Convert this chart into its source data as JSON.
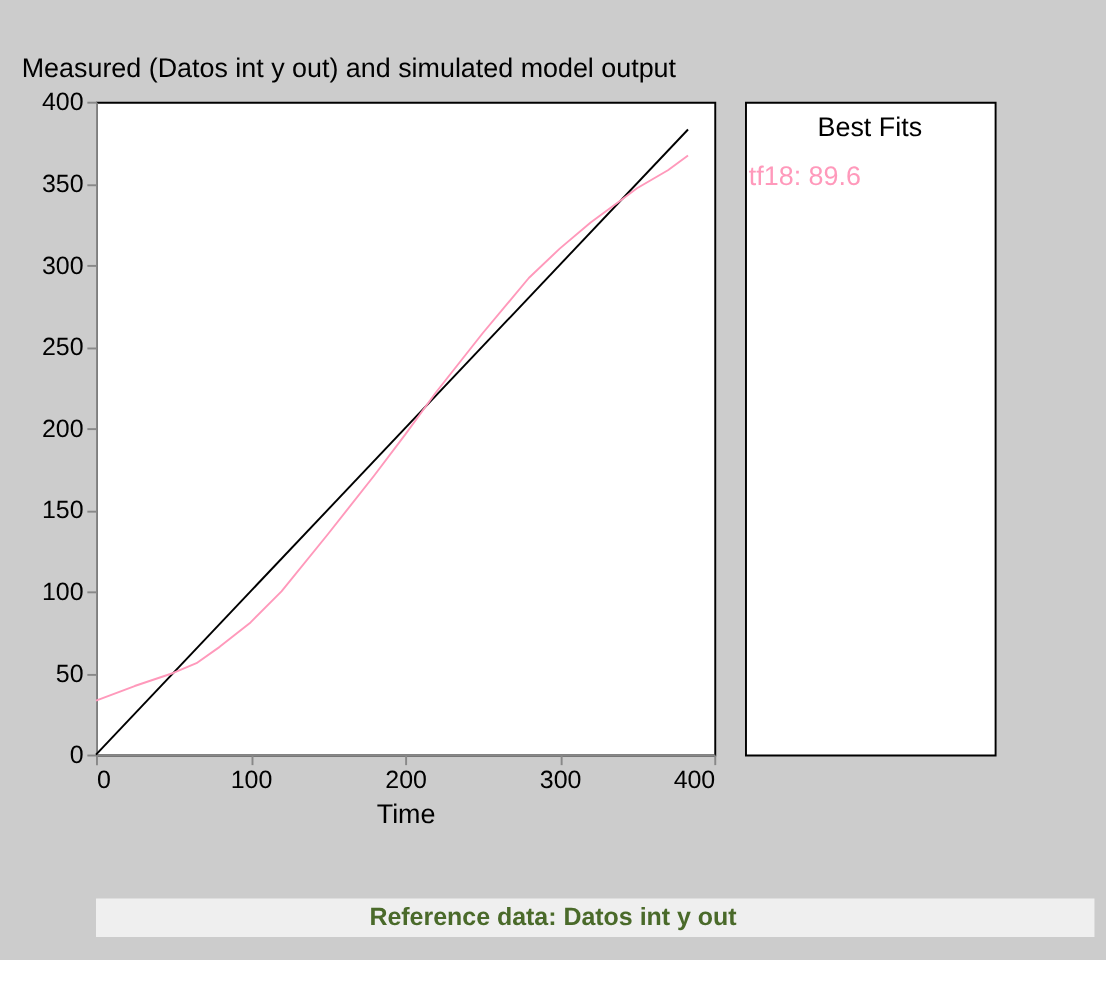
{
  "chart_data": {
    "type": "line",
    "title": "Measured (Datos int y out) and simulated model output",
    "xlabel": "Time",
    "legend_title": "Best Fits",
    "legend": "right",
    "grid": false,
    "xlim": [
      0,
      400
    ],
    "xticks": [
      0,
      100,
      200,
      300,
      400
    ],
    "ylim": [
      0,
      400
    ],
    "yticks": [
      0,
      50,
      100,
      150,
      200,
      250,
      300,
      350,
      400
    ],
    "series": [
      {
        "color": "#000000",
        "x": [
          0,
          383
        ],
        "values": [
          0,
          383
        ]
      },
      {
        "name": "tf18: 89.6",
        "color": "#ff99bb",
        "x": [
          0,
          25,
          50,
          65,
          80,
          100,
          120,
          150,
          180,
          200,
          220,
          250,
          280,
          300,
          320,
          340,
          350,
          370,
          383
        ],
        "values": [
          33,
          42,
          50,
          56,
          66,
          81,
          100,
          135,
          171,
          196,
          222,
          258,
          292,
          310,
          326,
          340,
          347,
          358,
          367
        ]
      }
    ],
    "annotations": [
      "Reference data:  Datos int y out"
    ]
  }
}
